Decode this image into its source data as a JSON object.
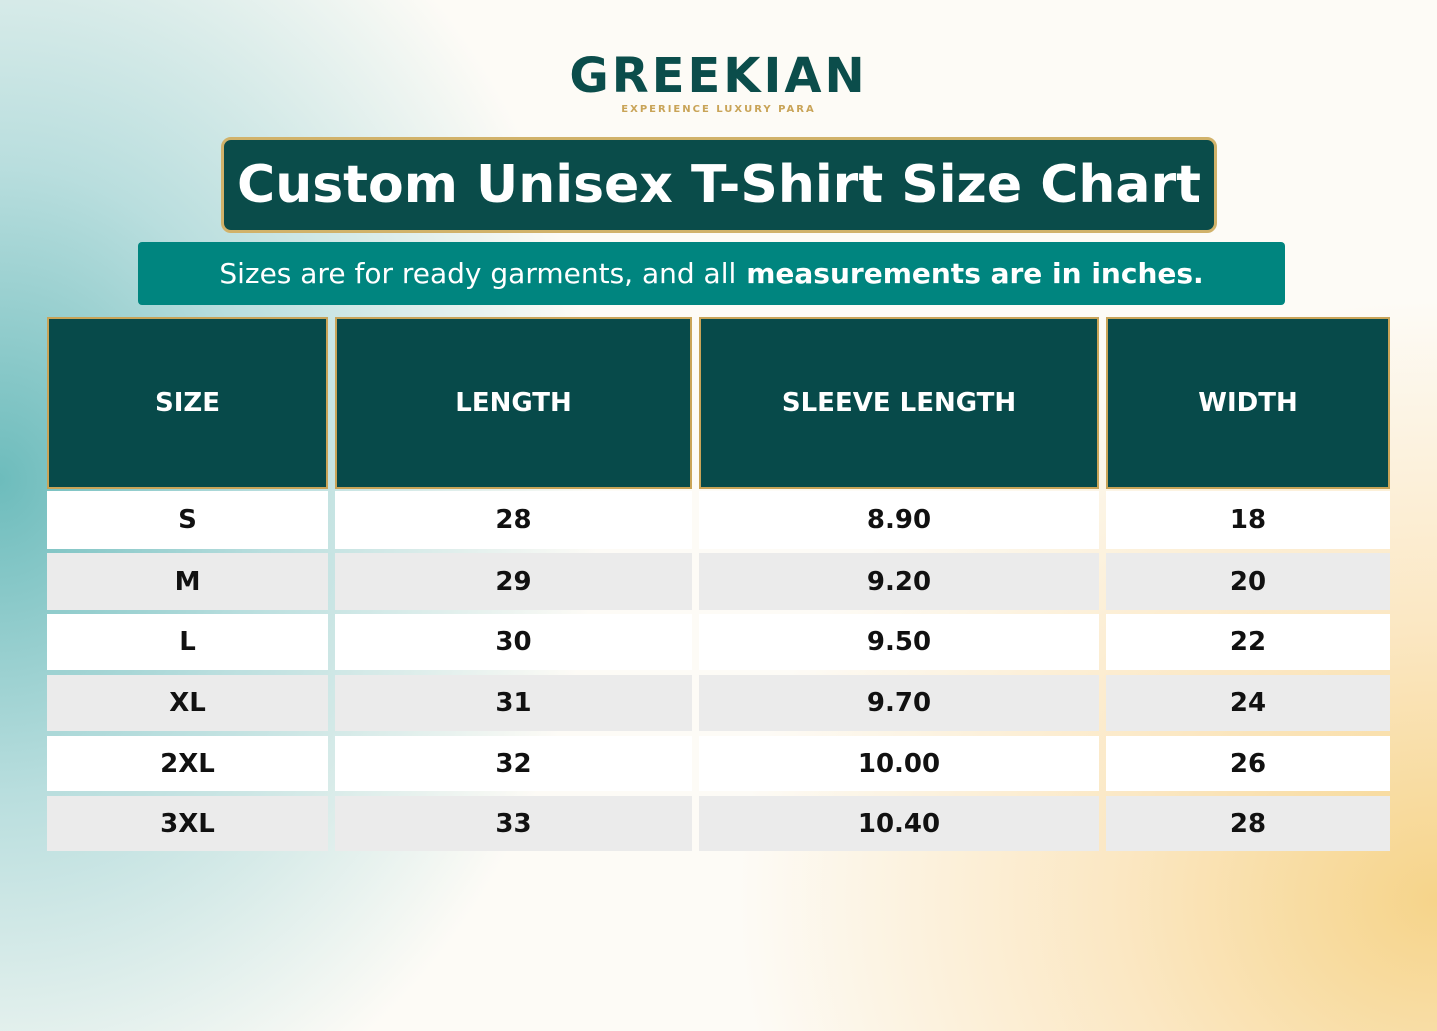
{
  "logo": {
    "brand": "GREEKIAN",
    "tagline": "EXPERIENCE LUXURY PARA"
  },
  "title": "Custom Unisex T-Shirt Size Chart",
  "subtitle": {
    "normal": "Sizes are for ready garments, and all",
    "bold": "measurements are in inches."
  },
  "table": {
    "headers": [
      "SIZE",
      "LENGTH",
      "SLEEVE LENGTH",
      "WIDTH"
    ],
    "rows": [
      [
        "S",
        "28",
        "8.90",
        "18"
      ],
      [
        "M",
        "29",
        "9.20",
        "20"
      ],
      [
        "L",
        "30",
        "9.50",
        "22"
      ],
      [
        "XL",
        "31",
        "9.70",
        "24"
      ],
      [
        "2XL",
        "32",
        "10.00",
        "26"
      ],
      [
        "3XL",
        "33",
        "10.40",
        "28"
      ]
    ]
  }
}
